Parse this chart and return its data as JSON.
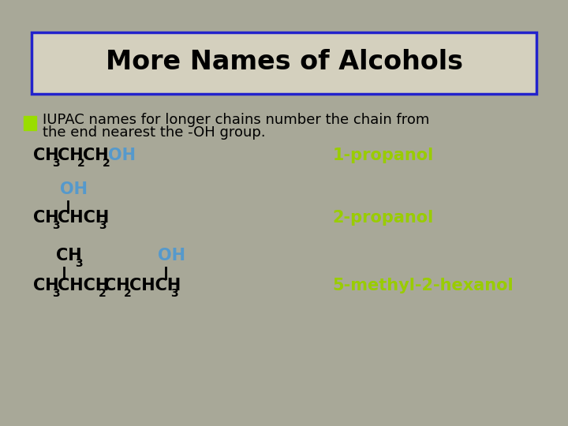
{
  "title": "More Names of Alcohols",
  "background_color": "#a8a898",
  "title_box_color": "#d4d0be",
  "title_box_border": "#2222cc",
  "title_color": "#000000",
  "bullet_color": "#99dd00",
  "text_color": "#000000",
  "green_label_color": "#99cc00",
  "blue_oh_color": "#5599cc",
  "label1": "1-propanol",
  "label2": "2-propanol",
  "label3": "5-methyl-2-hexanol"
}
